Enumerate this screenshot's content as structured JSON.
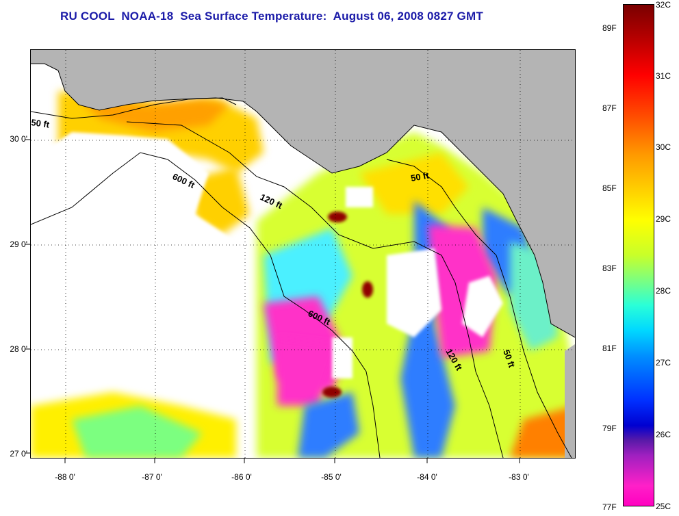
{
  "title": "RU COOL  NOAA-18  Sea Surface Temperature:  August 06, 2008 0827 GMT",
  "map": {
    "latitude_labels": [
      "30 0'",
      "29 0'",
      "28 0'",
      "27 0'"
    ],
    "longitude_labels": [
      "-88 0'",
      "-87 0'",
      "-86 0'",
      "-85 0'",
      "-84 0'",
      "-83 0'"
    ],
    "isobath_labels": [
      "50 ft",
      "600 ft",
      "120 ft",
      "50 ft",
      "600 ft",
      "120 ft",
      "50 ft"
    ],
    "colors": {
      "land": "#b4b4b4",
      "cloud": "#ffffff",
      "isobath": "#000000",
      "grid": "#000000"
    }
  },
  "colorbar": {
    "fahrenheit_labels": [
      "89F",
      "87F",
      "85F",
      "83F",
      "81F",
      "79F",
      "77F"
    ],
    "celsius_labels": [
      "32C",
      "31C",
      "30C",
      "29C",
      "28C",
      "27C",
      "26C",
      "25C"
    ],
    "min_c": 25,
    "max_c": 32
  }
}
